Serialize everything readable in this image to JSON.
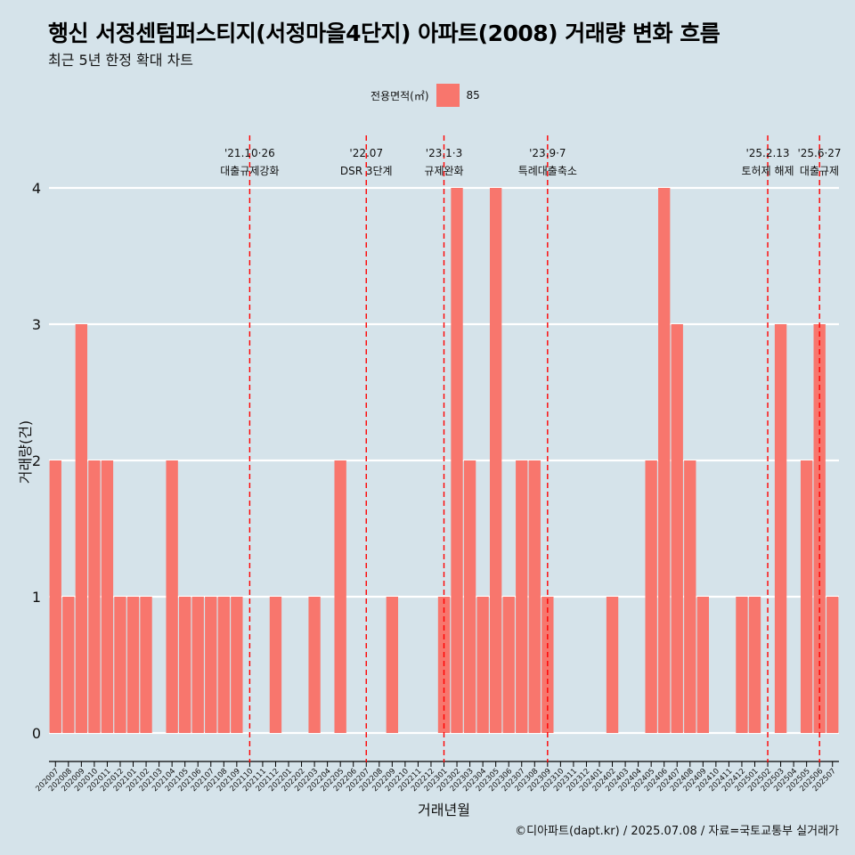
{
  "colors": {
    "background": "#d5e3ea",
    "bar": "#f8766d",
    "event_line": "#ff0000",
    "grid": "#ffffff"
  },
  "title": "행신 서정센텀퍼스티지(서정마을4단지) 아파트(2008) 거래량 변화 흐름",
  "subtitle": "최근 5년 한정 확대 차트",
  "legend": {
    "title": "전용면적(㎡)",
    "items": [
      {
        "label": "85"
      }
    ]
  },
  "caption": "©디아파트(dapt.kr) / 2025.07.08 / 자료=국토교통부 실거래가",
  "chart_data": {
    "type": "bar",
    "xlabel": "거래년월",
    "ylabel": "거래량(건)",
    "ylim": [
      0,
      4
    ],
    "yticks": [
      0,
      1,
      2,
      3,
      4
    ],
    "grid": "horizontal",
    "legend_position": "top",
    "categories": [
      "202007",
      "202008",
      "202009",
      "202010",
      "202011",
      "202012",
      "202101",
      "202102",
      "202103",
      "202104",
      "202105",
      "202106",
      "202107",
      "202108",
      "202109",
      "202110",
      "202111",
      "202112",
      "202201",
      "202202",
      "202203",
      "202204",
      "202205",
      "202206",
      "202207",
      "202208",
      "202209",
      "202210",
      "202211",
      "202212",
      "202301",
      "202302",
      "202303",
      "202304",
      "202305",
      "202306",
      "202307",
      "202308",
      "202309",
      "202310",
      "202311",
      "202312",
      "202401",
      "202402",
      "202403",
      "202404",
      "202405",
      "202406",
      "202407",
      "202408",
      "202409",
      "202410",
      "202411",
      "202412",
      "202501",
      "202502",
      "202503",
      "202504",
      "202505",
      "202506",
      "202507"
    ],
    "series": [
      {
        "name": "85",
        "values": [
          2,
          1,
          3,
          2,
          2,
          1,
          1,
          1,
          0,
          2,
          1,
          1,
          1,
          1,
          1,
          0,
          0,
          1,
          0,
          0,
          1,
          0,
          2,
          0,
          0,
          0,
          1,
          0,
          0,
          0,
          1,
          4,
          2,
          1,
          4,
          1,
          2,
          2,
          1,
          0,
          0,
          0,
          0,
          1,
          0,
          0,
          2,
          4,
          3,
          2,
          1,
          0,
          0,
          1,
          1,
          0,
          3,
          0,
          2,
          3,
          1
        ]
      }
    ],
    "events": [
      {
        "at": "202110",
        "date": "'21.10·26",
        "label": "대출규제강화"
      },
      {
        "at": "202207",
        "date": "'22.07",
        "label": "DSR 3단계"
      },
      {
        "at": "202301",
        "date": "'23.1·3",
        "label": "규제완화"
      },
      {
        "at": "202309",
        "date": "'23.9·7",
        "label": "특례대출축소"
      },
      {
        "at": "202502",
        "date": "'25.2.13",
        "label": "토허제 해제"
      },
      {
        "at": "202506",
        "date": "'25.6·27",
        "label": "대출규제"
      }
    ]
  }
}
